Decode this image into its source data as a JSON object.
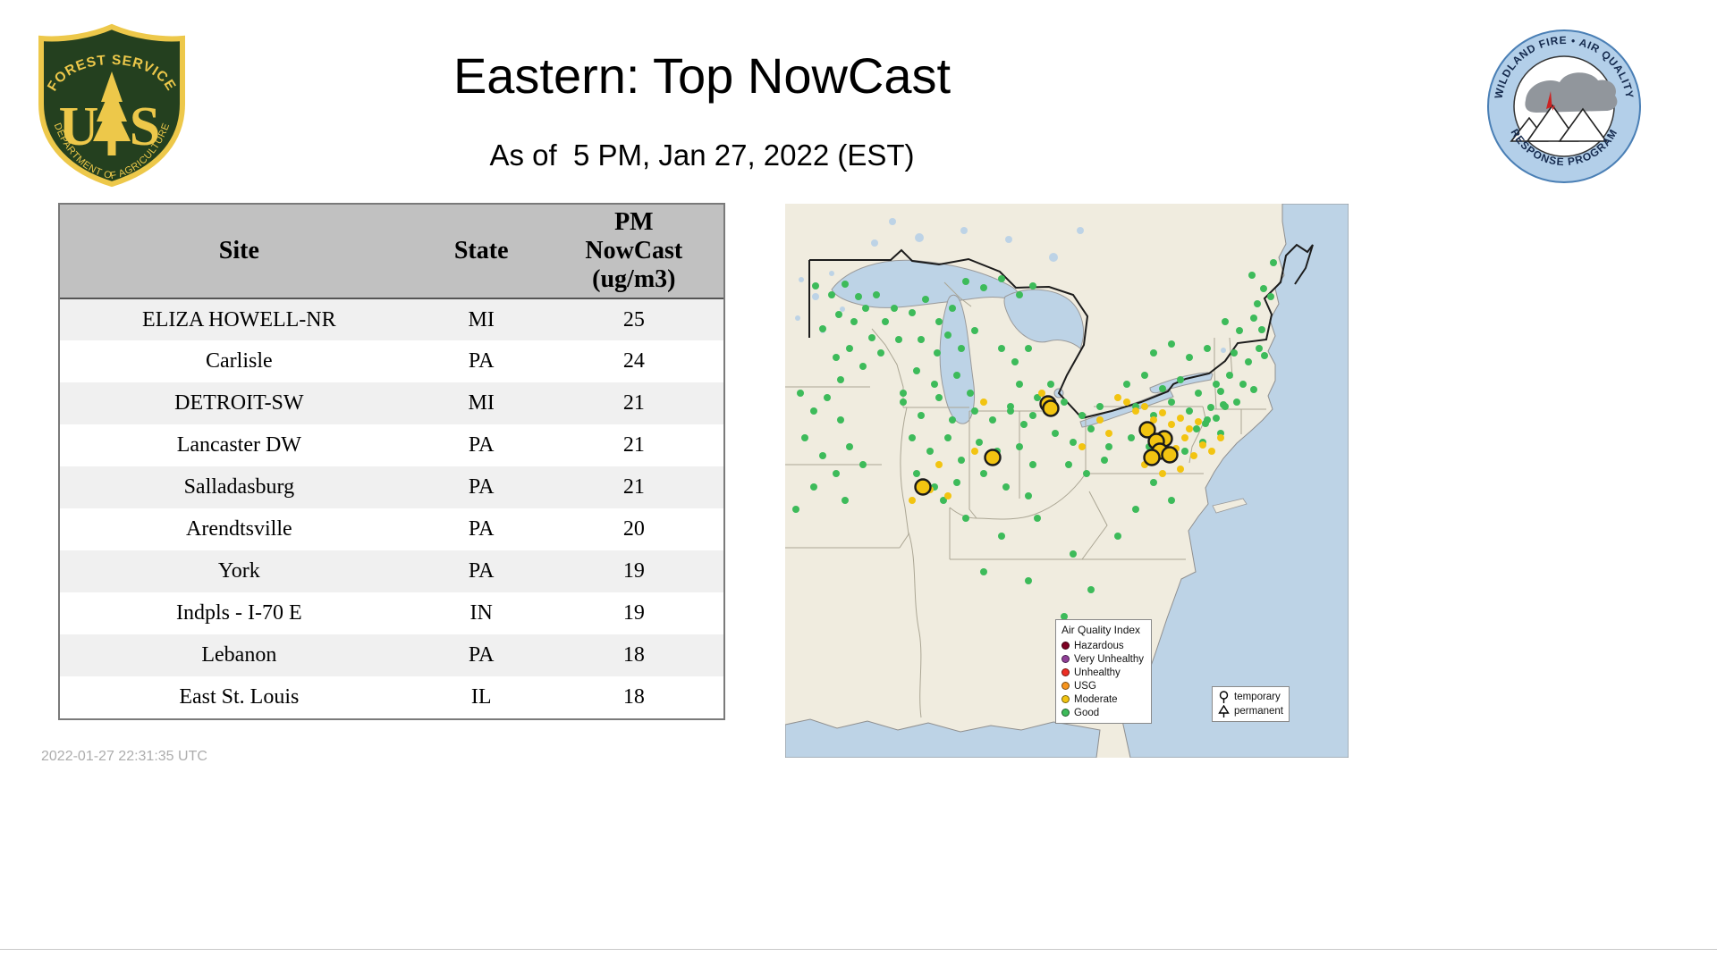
{
  "header": {
    "title": "Eastern: Top NowCast",
    "subtitle": "As of  5 PM, Jan 27, 2022 (EST)"
  },
  "logos": {
    "usfs": {
      "top_text": "FOREST SERVICE",
      "left_letter": "U",
      "right_letter": "S",
      "bottom_text": "DEPARTMENT OF AGRICULTURE"
    },
    "wfaqrp": {
      "top_text": "WILDLAND FIRE • AIR QUALITY",
      "bottom_text": "RESPONSE PROGRAM"
    }
  },
  "table": {
    "headers": [
      "Site",
      "State",
      "PM\nNowCast\n(ug/m3)"
    ],
    "rows": [
      [
        "ELIZA HOWELL-NR",
        "MI",
        "25"
      ],
      [
        "Carlisle",
        "PA",
        "24"
      ],
      [
        "DETROIT-SW",
        "MI",
        "21"
      ],
      [
        "Lancaster DW",
        "PA",
        "21"
      ],
      [
        "Salladasburg",
        "PA",
        "21"
      ],
      [
        "Arendtsville",
        "PA",
        "20"
      ],
      [
        "York",
        "PA",
        "19"
      ],
      [
        "Indpls - I-70 E",
        "IN",
        "19"
      ],
      [
        "Lebanon",
        "PA",
        "18"
      ],
      [
        "East St. Louis",
        "IL",
        "18"
      ]
    ]
  },
  "map": {
    "legend": {
      "title": "Air Quality Index",
      "items": [
        {
          "label": "Hazardous",
          "color": "#7e0023"
        },
        {
          "label": "Very Unhealthy",
          "color": "#8f3f97"
        },
        {
          "label": "Unhealthy",
          "color": "#ed2e24"
        },
        {
          "label": "USG",
          "color": "#f7941d"
        },
        {
          "label": "Moderate",
          "color": "#f2c411"
        },
        {
          "label": "Good",
          "color": "#3dbb5a"
        }
      ]
    },
    "marker_legend": [
      {
        "label": "temporary",
        "shape": "circle"
      },
      {
        "label": "permanent",
        "shape": "triangle"
      }
    ],
    "colors": {
      "good": "#3dbb5a",
      "moderate": "#f2c411",
      "top_site_fill": "#f2c411",
      "top_site_stroke": "#1a1a1a",
      "water": "#bdd3e6",
      "land": "#f0ecdf"
    },
    "dots": {
      "good": [
        [
          34,
          92
        ],
        [
          52,
          102
        ],
        [
          67,
          90
        ],
        [
          82,
          104
        ],
        [
          60,
          124
        ],
        [
          42,
          140
        ],
        [
          77,
          132
        ],
        [
          90,
          117
        ],
        [
          102,
          102
        ],
        [
          112,
          132
        ],
        [
          122,
          117
        ],
        [
          97,
          150
        ],
        [
          72,
          162
        ],
        [
          57,
          172
        ],
        [
          107,
          167
        ],
        [
          127,
          152
        ],
        [
          87,
          182
        ],
        [
          62,
          197
        ],
        [
          142,
          122
        ],
        [
          157,
          107
        ],
        [
          172,
          132
        ],
        [
          187,
          117
        ],
        [
          152,
          152
        ],
        [
          170,
          167
        ],
        [
          182,
          147
        ],
        [
          197,
          162
        ],
        [
          212,
          142
        ],
        [
          147,
          187
        ],
        [
          167,
          202
        ],
        [
          192,
          192
        ],
        [
          207,
          212
        ],
        [
          132,
          212
        ],
        [
          202,
          87
        ],
        [
          222,
          94
        ],
        [
          242,
          84
        ],
        [
          262,
          102
        ],
        [
          277,
          92
        ],
        [
          242,
          162
        ],
        [
          257,
          177
        ],
        [
          272,
          162
        ],
        [
          262,
          202
        ],
        [
          282,
          217
        ],
        [
          297,
          202
        ],
        [
          252,
          232
        ],
        [
          277,
          237
        ],
        [
          17,
          212
        ],
        [
          32,
          232
        ],
        [
          47,
          217
        ],
        [
          62,
          242
        ],
        [
          22,
          262
        ],
        [
          42,
          282
        ],
        [
          57,
          302
        ],
        [
          72,
          272
        ],
        [
          87,
          292
        ],
        [
          32,
          317
        ],
        [
          67,
          332
        ],
        [
          12,
          342
        ],
        [
          132,
          222
        ],
        [
          152,
          237
        ],
        [
          172,
          217
        ],
        [
          187,
          242
        ],
        [
          142,
          262
        ],
        [
          162,
          277
        ],
        [
          182,
          262
        ],
        [
          197,
          287
        ],
        [
          147,
          302
        ],
        [
          167,
          317
        ],
        [
          192,
          312
        ],
        [
          177,
          332
        ],
        [
          212,
          232
        ],
        [
          232,
          242
        ],
        [
          252,
          227
        ],
        [
          267,
          247
        ],
        [
          217,
          267
        ],
        [
          237,
          277
        ],
        [
          262,
          272
        ],
        [
          277,
          292
        ],
        [
          222,
          302
        ],
        [
          247,
          317
        ],
        [
          272,
          327
        ],
        [
          292,
          232
        ],
        [
          312,
          222
        ],
        [
          332,
          237
        ],
        [
          352,
          227
        ],
        [
          302,
          257
        ],
        [
          322,
          267
        ],
        [
          342,
          252
        ],
        [
          362,
          272
        ],
        [
          317,
          292
        ],
        [
          337,
          302
        ],
        [
          357,
          287
        ],
        [
          382,
          202
        ],
        [
          402,
          192
        ],
        [
          422,
          207
        ],
        [
          442,
          197
        ],
        [
          462,
          212
        ],
        [
          482,
          202
        ],
        [
          392,
          227
        ],
        [
          412,
          237
        ],
        [
          432,
          222
        ],
        [
          452,
          232
        ],
        [
          472,
          242
        ],
        [
          492,
          227
        ],
        [
          387,
          262
        ],
        [
          407,
          272
        ],
        [
          427,
          262
        ],
        [
          447,
          277
        ],
        [
          467,
          267
        ],
        [
          487,
          257
        ],
        [
          412,
          167
        ],
        [
          432,
          157
        ],
        [
          452,
          172
        ],
        [
          472,
          162
        ],
        [
          492,
          132
        ],
        [
          508,
          142
        ],
        [
          524,
          128
        ],
        [
          533,
          141
        ],
        [
          502,
          167
        ],
        [
          518,
          177
        ],
        [
          530,
          162
        ],
        [
          536,
          170
        ],
        [
          512,
          202
        ],
        [
          524,
          208
        ],
        [
          497,
          192
        ],
        [
          487,
          210
        ],
        [
          476,
          228
        ],
        [
          490,
          225
        ],
        [
          470,
          246
        ],
        [
          482,
          240
        ],
        [
          460,
          252
        ],
        [
          505,
          222
        ],
        [
          522,
          80
        ],
        [
          535,
          95
        ],
        [
          528,
          112
        ],
        [
          543,
          104
        ],
        [
          546,
          66
        ],
        [
          202,
          352
        ],
        [
          242,
          372
        ],
        [
          282,
          352
        ],
        [
          322,
          392
        ],
        [
          272,
          422
        ],
        [
          222,
          412
        ],
        [
          372,
          372
        ],
        [
          342,
          432
        ],
        [
          312,
          462
        ],
        [
          412,
          312
        ],
        [
          432,
          332
        ],
        [
          392,
          342
        ]
      ],
      "moderate": [
        [
          222,
          222
        ],
        [
          287,
          212
        ],
        [
          297,
          220
        ],
        [
          372,
          217
        ],
        [
          382,
          222
        ],
        [
          392,
          232
        ],
        [
          402,
          227
        ],
        [
          412,
          242
        ],
        [
          422,
          234
        ],
        [
          432,
          247
        ],
        [
          442,
          240
        ],
        [
          452,
          252
        ],
        [
          462,
          244
        ],
        [
          417,
          260
        ],
        [
          427,
          267
        ],
        [
          437,
          274
        ],
        [
          447,
          262
        ],
        [
          457,
          282
        ],
        [
          467,
          270
        ],
        [
          402,
          292
        ],
        [
          422,
          302
        ],
        [
          442,
          297
        ],
        [
          212,
          277
        ],
        [
          172,
          292
        ],
        [
          162,
          320
        ],
        [
          182,
          327
        ],
        [
          142,
          332
        ],
        [
          352,
          242
        ],
        [
          362,
          257
        ],
        [
          332,
          272
        ],
        [
          477,
          277
        ],
        [
          487,
          262
        ]
      ],
      "top_sites": [
        [
          294,
          224
        ],
        [
          297,
          229
        ],
        [
          232,
          284
        ],
        [
          154,
          317
        ],
        [
          405,
          253
        ],
        [
          424,
          263
        ],
        [
          415,
          266
        ],
        [
          419,
          277
        ],
        [
          430,
          281
        ],
        [
          410,
          284
        ]
      ]
    }
  },
  "footer": {
    "timestamp": "2022-01-27 22:31:35 UTC"
  },
  "chart_data": {
    "type": "table",
    "title": "Eastern: Top NowCast",
    "as_of": "5 PM, Jan 27, 2022 (EST)",
    "columns": [
      "Site",
      "State",
      "PM NowCast (ug/m3)"
    ],
    "rows": [
      [
        "ELIZA HOWELL-NR",
        "MI",
        25
      ],
      [
        "Carlisle",
        "PA",
        24
      ],
      [
        "DETROIT-SW",
        "MI",
        21
      ],
      [
        "Lancaster DW",
        "PA",
        21
      ],
      [
        "Salladasburg",
        "PA",
        21
      ],
      [
        "Arendtsville",
        "PA",
        20
      ],
      [
        "York",
        "PA",
        19
      ],
      [
        "Indpls - I-70 E",
        "IN",
        19
      ],
      [
        "Lebanon",
        "PA",
        18
      ],
      [
        "East St. Louis",
        "IL",
        18
      ]
    ],
    "map_legend_categories": [
      "Hazardous",
      "Very Unhealthy",
      "Unhealthy",
      "USG",
      "Moderate",
      "Good"
    ]
  }
}
